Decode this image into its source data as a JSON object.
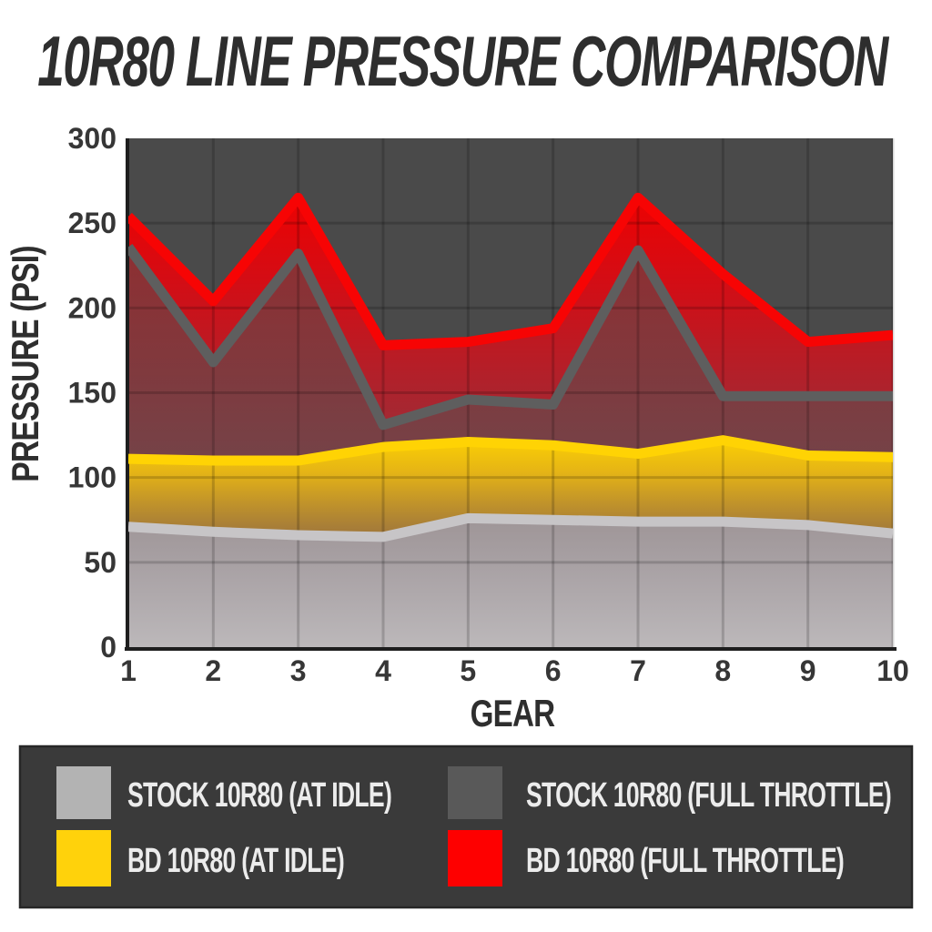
{
  "title": "10R80 LINE PRESSURE COMPARISON",
  "chart_data": {
    "type": "area",
    "title": "10R80 LINE PRESSURE COMPARISON",
    "xlabel": "GEAR",
    "ylabel": "PRESSURE (PSI)",
    "categories": [
      1,
      2,
      3,
      4,
      5,
      6,
      7,
      8,
      9,
      10
    ],
    "ylim": [
      0,
      300
    ],
    "grid": true,
    "y_tick_values": [
      0,
      50,
      100,
      150,
      200,
      250,
      300
    ],
    "y_tick_labels": [
      "0",
      "50",
      "100",
      "150",
      "200",
      "250",
      "300"
    ],
    "series": [
      {
        "name": "BD 10R80 (FULL THROTTLE)",
        "color": "#f70404",
        "values": [
          254,
          204,
          265,
          178,
          180,
          188,
          265,
          220,
          180,
          184
        ]
      },
      {
        "name": "STOCK 10R80 (FULL THROTTLE)",
        "color": "#5e5e5e",
        "values": [
          236,
          168,
          232,
          131,
          146,
          143,
          234,
          148,
          148,
          148
        ]
      },
      {
        "name": "BD 10R80 (AT IDLE)",
        "color": "#ffd304",
        "values": [
          111,
          110,
          110,
          118,
          121,
          119,
          114,
          122,
          113,
          112
        ]
      },
      {
        "name": "STOCK 10R80 (AT IDLE)",
        "color": "#c7c5c7",
        "values": [
          71,
          68,
          66,
          65,
          76,
          75,
          74,
          74,
          72,
          67
        ]
      }
    ],
    "legend_position": "bottom"
  },
  "legend": {
    "items": [
      {
        "label": "STOCK 10R80 (AT IDLE)",
        "color": "#b3b3b3"
      },
      {
        "label": "STOCK 10R80 (FULL THROTTLE)",
        "color": "#595959"
      },
      {
        "label": "BD 10R80 (AT IDLE)",
        "color": "#ffd20b"
      },
      {
        "label": "BD 10R80 (FULL THROTTLE)",
        "color": "#fe0000"
      }
    ]
  },
  "colors": {
    "page_background": "#ffffff",
    "plot_background": "#4a4a4a",
    "legend_background": "#3a3a3a",
    "axis_text": "#2e2e2e",
    "tick_text": "#363636",
    "legend_text": "#ececec"
  }
}
